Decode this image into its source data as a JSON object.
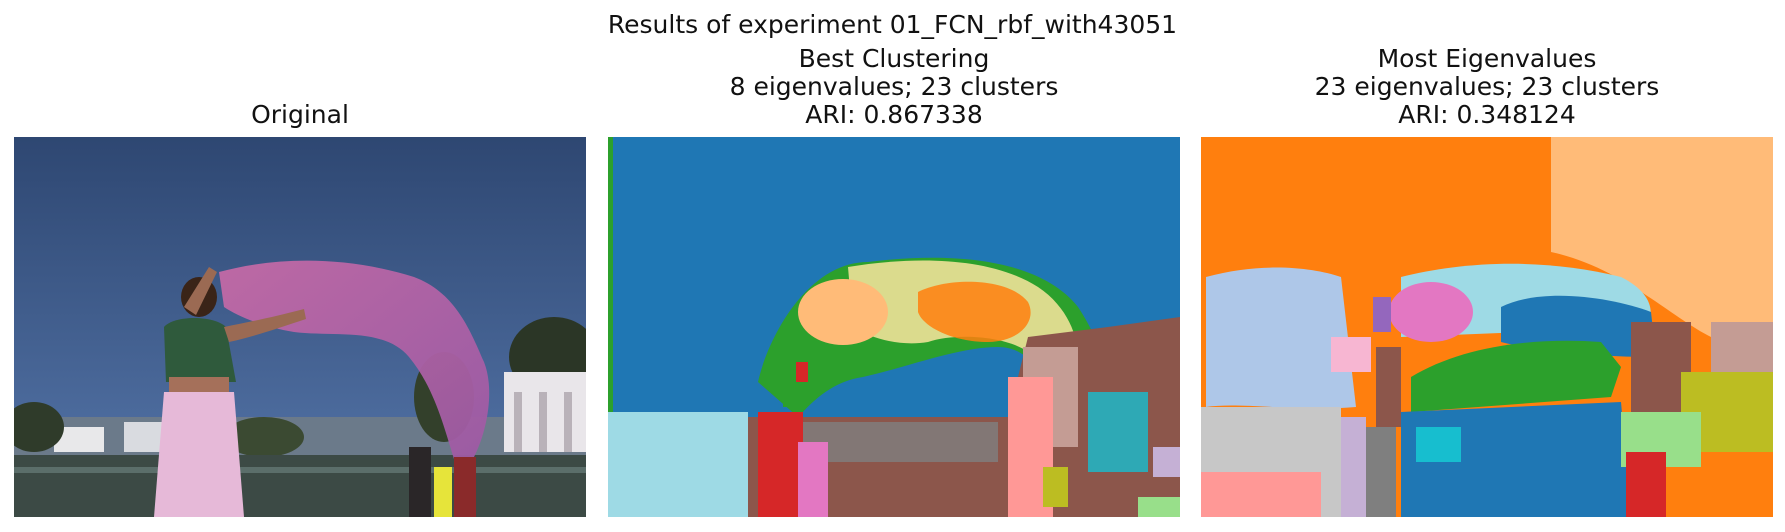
{
  "figure": {
    "suptitle": "Results of experiment 01_FCN_rbf_with43051"
  },
  "panels": [
    {
      "title_lines": [
        "Original"
      ],
      "image": "photo of a woman holding a pink sari against a blue sky by a lake"
    },
    {
      "title_lines": [
        "Best Clustering",
        "8 eigenvalues; 23 clusters",
        "ARI: 0.867338"
      ],
      "image": "cluster segmentation map"
    },
    {
      "title_lines": [
        "Most Eigenvalues",
        "23 eigenvalues; 23 clusters",
        "ARI: 0.348124"
      ],
      "image": "cluster segmentation map"
    }
  ],
  "colors": {
    "sky_top": "#2e4772",
    "sky_bottom": "#4a6ea3",
    "tab_blue": "#1f77b4",
    "tab_orange": "#ff7f0e",
    "tab_green": "#2ca02c",
    "tab_red": "#d62728",
    "tab_pink": "#e377c2",
    "tab_brown": "#8c564b",
    "tab_gray": "#7f7f7f",
    "tab_olive": "#bcbd22",
    "tab_cyan": "#17becf",
    "light_blue": "#aec7e8",
    "light_orange": "#ffbb78",
    "light_green": "#98df8a",
    "light_red": "#ff9896",
    "light_purple": "#c5b0d5",
    "light_brown": "#c49c94",
    "light_pink": "#f7b6d2",
    "light_gray": "#c7c7c7",
    "light_olive": "#dbdb8d",
    "light_cyan": "#9edae5"
  }
}
